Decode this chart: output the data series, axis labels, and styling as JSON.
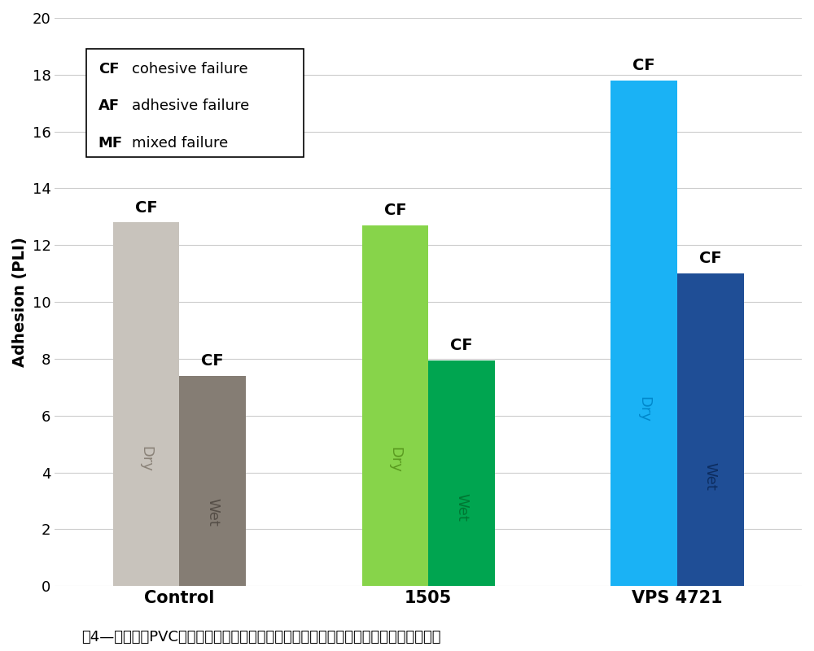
{
  "groups": [
    "Control",
    "1505",
    "VPS 4721"
  ],
  "dry_values": [
    12.8,
    12.7,
    17.8
  ],
  "wet_values": [
    7.4,
    7.95,
    11.0
  ],
  "dry_labels": [
    "Dry",
    "Dry",
    "Dry"
  ],
  "wet_labels": [
    "Wet",
    "Wet",
    "Wet"
  ],
  "dry_failure": [
    "CF",
    "CF",
    "CF"
  ],
  "wet_failure": [
    "CF",
    "CF",
    "CF"
  ],
  "dry_colors": [
    "#c8c3bc",
    "#87d44a",
    "#1ab2f5"
  ],
  "wet_colors": [
    "#857d74",
    "#00a550",
    "#1f4e96"
  ],
  "dry_text_colors": [
    "#8a8278",
    "#5a9a20",
    "#0088cc"
  ],
  "wet_text_colors": [
    "#554e47",
    "#007733",
    "#0d2d60"
  ],
  "ylabel": "Adhesion (PLI)",
  "ylim": [
    0,
    20
  ],
  "yticks": [
    0,
    2,
    4,
    6,
    8,
    10,
    12,
    14,
    16,
    18,
    20
  ],
  "legend_items": [
    {
      "label": "CF",
      "desc": "cohesive failure"
    },
    {
      "label": "AF",
      "desc": "adhesive failure"
    },
    {
      "label": "MF",
      "desc": "mixed failure"
    }
  ],
  "caption": "图4—记录老化PVC屋面薄膜上水性丙烯酸屋面涂层的干、湿附着力测量值和失效模式。",
  "bar_width": 0.32,
  "background_color": "#ffffff",
  "grid_color": "#cccccc",
  "ylabel_fontsize": 14,
  "tick_fontsize": 13,
  "group_label_fontsize": 15,
  "failure_label_fontsize": 14,
  "bar_label_fontsize": 13,
  "caption_fontsize": 13,
  "legend_fontsize": 13
}
